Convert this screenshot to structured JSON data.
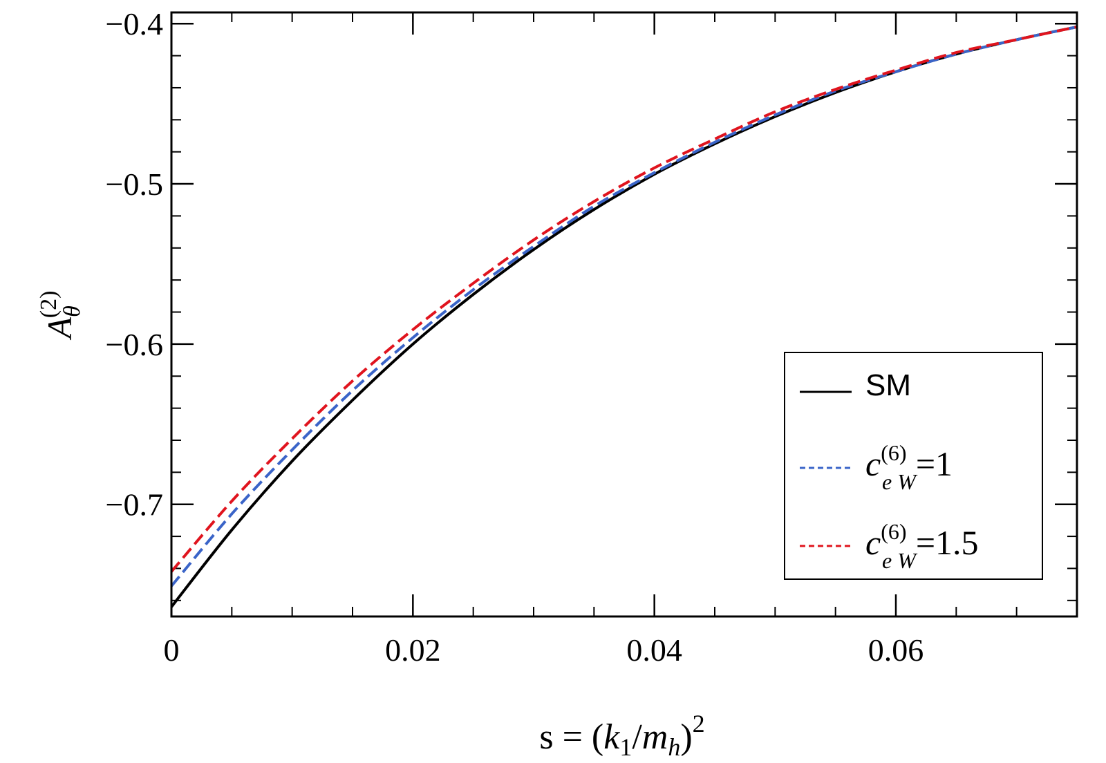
{
  "chart_data": {
    "type": "line",
    "title": "",
    "xlabel": "s = (k1/mh)^2",
    "ylabel": "A_theta^(2)",
    "xlabel_parts": {
      "main": "s = (",
      "k": "k",
      "one": "1",
      "slash": "/",
      "m": "m",
      "h": "h",
      "close": ")",
      "exp": "2"
    },
    "ylabel_parts": {
      "A": "A",
      "sub": "θ",
      "sup": "(2)"
    },
    "xlim": [
      0,
      0.075
    ],
    "ylim": [
      -0.77,
      -0.393
    ],
    "xticks": [
      0,
      0.02,
      0.04,
      0.06
    ],
    "xtick_labels": [
      "0",
      "0.02",
      "0.04",
      "0.06"
    ],
    "xminor_step": 0.005,
    "yticks": [
      -0.4,
      -0.5,
      -0.6,
      -0.7
    ],
    "ytick_labels": [
      "−0.4",
      "−0.5",
      "−0.6",
      "−0.7"
    ],
    "yminor_step": 0.02,
    "legend_position": "lower-right",
    "series": [
      {
        "name": "SM",
        "legend": {
          "label": "SM"
        },
        "color": "#000000",
        "dash": "solid",
        "x": [
          0,
          0.005,
          0.01,
          0.015,
          0.02,
          0.025,
          0.03,
          0.035,
          0.04,
          0.045,
          0.05,
          0.055,
          0.06,
          0.065,
          0.07,
          0.075
        ],
        "y": [
          -0.764,
          -0.716,
          -0.673,
          -0.635,
          -0.6,
          -0.569,
          -0.541,
          -0.516,
          -0.494,
          -0.475,
          -0.458,
          -0.443,
          -0.43,
          -0.419,
          -0.41,
          -0.402
        ]
      },
      {
        "name": "c_eW^(6)=1",
        "legend": {
          "c": "c",
          "sup": "(6)",
          "sub": "e W",
          "value": "=1"
        },
        "color": "#3a64c8",
        "dash": "dashed",
        "x": [
          0,
          0.005,
          0.01,
          0.015,
          0.02,
          0.025,
          0.03,
          0.035,
          0.04,
          0.045,
          0.05,
          0.055,
          0.06,
          0.065,
          0.07,
          0.075
        ],
        "y": [
          -0.751,
          -0.706,
          -0.666,
          -0.629,
          -0.596,
          -0.566,
          -0.539,
          -0.514,
          -0.493,
          -0.474,
          -0.457,
          -0.442,
          -0.43,
          -0.419,
          -0.41,
          -0.402
        ]
      },
      {
        "name": "c_eW^(6)=1.5",
        "legend": {
          "c": "c",
          "sup": "(6)",
          "sub": "e W",
          "value": "=1.5"
        },
        "color": "#e0141e",
        "dash": "dashed",
        "x": [
          0,
          0.005,
          0.01,
          0.015,
          0.02,
          0.025,
          0.03,
          0.035,
          0.04,
          0.045,
          0.05,
          0.055,
          0.06,
          0.065,
          0.07,
          0.075
        ],
        "y": [
          -0.742,
          -0.698,
          -0.659,
          -0.623,
          -0.591,
          -0.562,
          -0.535,
          -0.511,
          -0.49,
          -0.472,
          -0.455,
          -0.441,
          -0.429,
          -0.418,
          -0.41,
          -0.402
        ]
      }
    ]
  }
}
